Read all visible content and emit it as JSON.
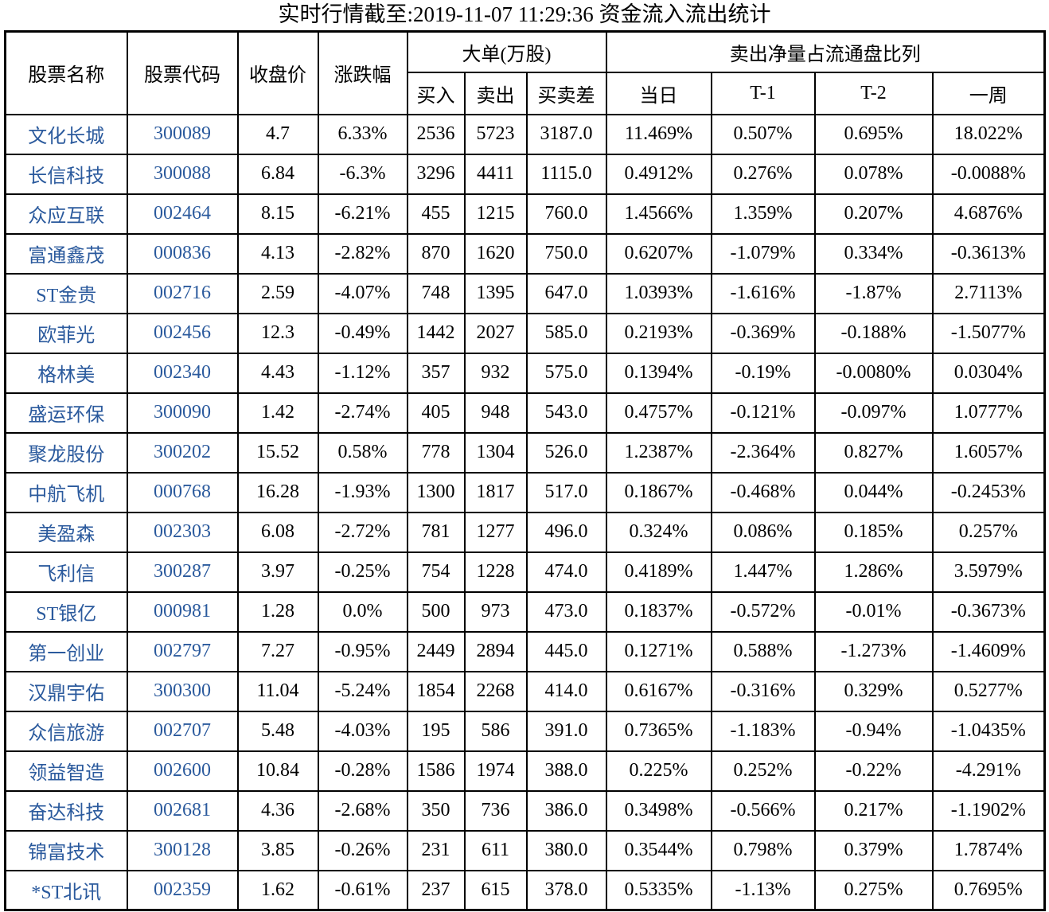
{
  "title": "实时行情截至:2019-11-07 11:29:36 资金流入流出统计",
  "colors": {
    "link_blue": "#2b5a9d",
    "border": "#000000",
    "background": "#ffffff"
  },
  "columns": {
    "name": "股票名称",
    "code": "股票代码",
    "close": "收盘价",
    "change": "涨跌幅",
    "big_order_group": "大单(万股)",
    "buy": "买入",
    "sell": "卖出",
    "diff": "买卖差",
    "sell_net_group": "卖出净量占流通盘比列",
    "today": "当日",
    "t1": "T-1",
    "t2": "T-2",
    "week": "一周"
  },
  "rows": [
    {
      "name": "文化长城",
      "code": "300089",
      "close": "4.7",
      "change": "6.33%",
      "buy": "2536",
      "sell": "5723",
      "diff": "3187.0",
      "today": "11.469%",
      "t1": "0.507%",
      "t2": "0.695%",
      "week": "18.022%"
    },
    {
      "name": "长信科技",
      "code": "300088",
      "close": "6.84",
      "change": "-6.3%",
      "buy": "3296",
      "sell": "4411",
      "diff": "1115.0",
      "today": "0.4912%",
      "t1": "0.276%",
      "t2": "0.078%",
      "week": "-0.0088%"
    },
    {
      "name": "众应互联",
      "code": "002464",
      "close": "8.15",
      "change": "-6.21%",
      "buy": "455",
      "sell": "1215",
      "diff": "760.0",
      "today": "1.4566%",
      "t1": "1.359%",
      "t2": "0.207%",
      "week": "4.6876%"
    },
    {
      "name": "富通鑫茂",
      "code": "000836",
      "close": "4.13",
      "change": "-2.82%",
      "buy": "870",
      "sell": "1620",
      "diff": "750.0",
      "today": "0.6207%",
      "t1": "-1.079%",
      "t2": "0.334%",
      "week": "-0.3613%"
    },
    {
      "name": "ST金贵",
      "code": "002716",
      "close": "2.59",
      "change": "-4.07%",
      "buy": "748",
      "sell": "1395",
      "diff": "647.0",
      "today": "1.0393%",
      "t1": "-1.616%",
      "t2": "-1.87%",
      "week": "2.7113%"
    },
    {
      "name": "欧菲光",
      "code": "002456",
      "close": "12.3",
      "change": "-0.49%",
      "buy": "1442",
      "sell": "2027",
      "diff": "585.0",
      "today": "0.2193%",
      "t1": "-0.369%",
      "t2": "-0.188%",
      "week": "-1.5077%"
    },
    {
      "name": "格林美",
      "code": "002340",
      "close": "4.43",
      "change": "-1.12%",
      "buy": "357",
      "sell": "932",
      "diff": "575.0",
      "today": "0.1394%",
      "t1": "-0.19%",
      "t2": "-0.0080%",
      "week": "0.0304%"
    },
    {
      "name": "盛运环保",
      "code": "300090",
      "close": "1.42",
      "change": "-2.74%",
      "buy": "405",
      "sell": "948",
      "diff": "543.0",
      "today": "0.4757%",
      "t1": "-0.121%",
      "t2": "-0.097%",
      "week": "1.0777%"
    },
    {
      "name": "聚龙股份",
      "code": "300202",
      "close": "15.52",
      "change": "0.58%",
      "buy": "778",
      "sell": "1304",
      "diff": "526.0",
      "today": "1.2387%",
      "t1": "-2.364%",
      "t2": "0.827%",
      "week": "1.6057%"
    },
    {
      "name": "中航飞机",
      "code": "000768",
      "close": "16.28",
      "change": "-1.93%",
      "buy": "1300",
      "sell": "1817",
      "diff": "517.0",
      "today": "0.1867%",
      "t1": "-0.468%",
      "t2": "0.044%",
      "week": "-0.2453%"
    },
    {
      "name": "美盈森",
      "code": "002303",
      "close": "6.08",
      "change": "-2.72%",
      "buy": "781",
      "sell": "1277",
      "diff": "496.0",
      "today": "0.324%",
      "t1": "0.086%",
      "t2": "0.185%",
      "week": "0.257%"
    },
    {
      "name": "飞利信",
      "code": "300287",
      "close": "3.97",
      "change": "-0.25%",
      "buy": "754",
      "sell": "1228",
      "diff": "474.0",
      "today": "0.4189%",
      "t1": "1.447%",
      "t2": "1.286%",
      "week": "3.5979%"
    },
    {
      "name": "ST银亿",
      "code": "000981",
      "close": "1.28",
      "change": "0.0%",
      "buy": "500",
      "sell": "973",
      "diff": "473.0",
      "today": "0.1837%",
      "t1": "-0.572%",
      "t2": "-0.01%",
      "week": "-0.3673%"
    },
    {
      "name": "第一创业",
      "code": "002797",
      "close": "7.27",
      "change": "-0.95%",
      "buy": "2449",
      "sell": "2894",
      "diff": "445.0",
      "today": "0.1271%",
      "t1": "0.588%",
      "t2": "-1.273%",
      "week": "-1.4609%"
    },
    {
      "name": "汉鼎宇佑",
      "code": "300300",
      "close": "11.04",
      "change": "-5.24%",
      "buy": "1854",
      "sell": "2268",
      "diff": "414.0",
      "today": "0.6167%",
      "t1": "-0.316%",
      "t2": "0.329%",
      "week": "0.5277%"
    },
    {
      "name": "众信旅游",
      "code": "002707",
      "close": "5.48",
      "change": "-4.03%",
      "buy": "195",
      "sell": "586",
      "diff": "391.0",
      "today": "0.7365%",
      "t1": "-1.183%",
      "t2": "-0.94%",
      "week": "-1.0435%"
    },
    {
      "name": "领益智造",
      "code": "002600",
      "close": "10.84",
      "change": "-0.28%",
      "buy": "1586",
      "sell": "1974",
      "diff": "388.0",
      "today": "0.225%",
      "t1": "0.252%",
      "t2": "-0.22%",
      "week": "-4.291%"
    },
    {
      "name": "奋达科技",
      "code": "002681",
      "close": "4.36",
      "change": "-2.68%",
      "buy": "350",
      "sell": "736",
      "diff": "386.0",
      "today": "0.3498%",
      "t1": "-0.566%",
      "t2": "0.217%",
      "week": "-1.1902%"
    },
    {
      "name": "锦富技术",
      "code": "300128",
      "close": "3.85",
      "change": "-0.26%",
      "buy": "231",
      "sell": "611",
      "diff": "380.0",
      "today": "0.3544%",
      "t1": "0.798%",
      "t2": "0.379%",
      "week": "1.7874%"
    },
    {
      "name": "*ST北讯",
      "code": "002359",
      "close": "1.62",
      "change": "-0.61%",
      "buy": "237",
      "sell": "615",
      "diff": "378.0",
      "today": "0.5335%",
      "t1": "-1.13%",
      "t2": "0.275%",
      "week": "0.7695%"
    }
  ]
}
